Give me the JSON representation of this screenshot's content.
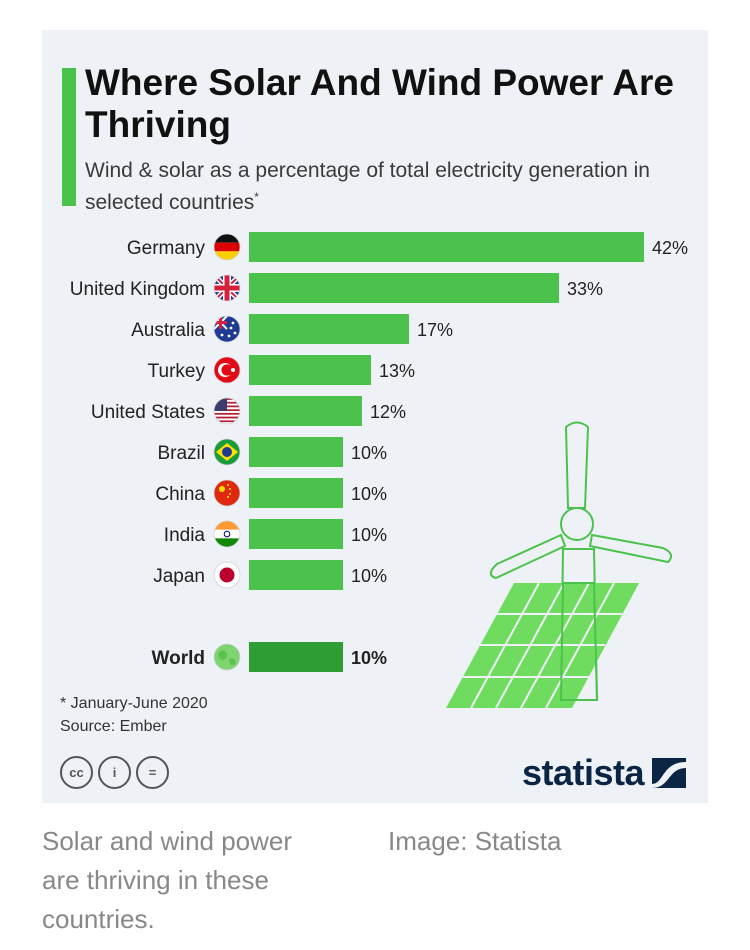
{
  "chart_data": {
    "type": "bar",
    "orientation": "horizontal",
    "title": "Where Solar And Wind Power Are Thriving",
    "subtitle": "Wind & solar as a percentage of total electricity generation in selected countries",
    "subtitle_footnote_mark": "*",
    "categories": [
      "Germany",
      "United Kingdom",
      "Australia",
      "Turkey",
      "United States",
      "Brazil",
      "China",
      "India",
      "Japan",
      "World"
    ],
    "values": [
      42,
      33,
      17,
      13,
      12,
      10,
      10,
      10,
      10,
      10
    ],
    "value_labels": [
      "42%",
      "33%",
      "17%",
      "13%",
      "12%",
      "10%",
      "10%",
      "10%",
      "10%",
      "10%"
    ],
    "highlighted_category": "World",
    "xlim": [
      0,
      42
    ],
    "colors": {
      "bar": "#4bc24b",
      "highlight_bar": "#2e9e34",
      "accent": "#4bc24b"
    },
    "legend": "none",
    "grid": false
  },
  "footnote": "* January-June 2020",
  "source": "Source: Ember",
  "license_icons": [
    "creative-commons-icon",
    "attribution-icon",
    "no-derivatives-icon"
  ],
  "license_icon_glyphs": [
    "cc",
    "i",
    "="
  ],
  "brand": {
    "name": "statista",
    "color": "#0b2545"
  },
  "illustration": [
    "wind-turbine",
    "solar-panel"
  ],
  "caption": "Solar and wind power are thriving in these countries.",
  "credit": "Image: Statista"
}
